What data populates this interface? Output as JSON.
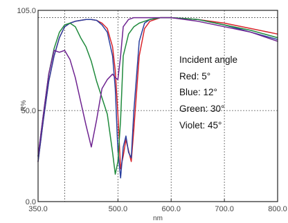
{
  "chart_data": {
    "type": "line",
    "xlabel": "nm",
    "ylabel": "R%",
    "xlim": [
      350,
      800
    ],
    "ylim": [
      0,
      105
    ],
    "x_ticks": [
      350,
      500,
      600,
      700,
      800
    ],
    "x_tick_labels": [
      "350.0",
      "500.0",
      "600.0",
      "700.0",
      "800.0"
    ],
    "x_gridlines": [
      400,
      500,
      600,
      700
    ],
    "y_ticks": [
      0,
      50,
      105
    ],
    "y_tick_labels": [
      "0.0",
      "50.0",
      "105.0"
    ],
    "y_gridlines": [
      50,
      101
    ],
    "grid": true,
    "annotation": [
      "Incident angle",
      "Red: 5°",
      "Blue: 12°",
      "Green: 30°",
      "Violet: 45°"
    ],
    "series": [
      {
        "color": "#d8232a",
        "x": [
          350,
          360,
          370,
          380,
          390,
          400,
          410,
          420,
          430,
          440,
          450,
          460,
          470,
          480,
          490,
          495,
          500,
          505,
          510,
          515,
          520,
          525,
          530,
          540,
          550,
          560,
          580,
          600,
          650,
          700,
          750,
          800
        ],
        "y": [
          22,
          45,
          66,
          80,
          90,
          96,
          98,
          99,
          99.5,
          100,
          100,
          99.5,
          98,
          95,
          85,
          72,
          48,
          18,
          25,
          34,
          28,
          22,
          40,
          80,
          95,
          99,
          101,
          101,
          100,
          98,
          95,
          92
        ]
      },
      {
        "color": "#2a3f9e",
        "x": [
          350,
          360,
          370,
          380,
          390,
          400,
          410,
          420,
          430,
          440,
          450,
          460,
          470,
          480,
          490,
          495,
          500,
          505,
          510,
          515,
          520,
          525,
          530,
          540,
          550,
          560,
          580,
          600,
          650,
          700,
          750,
          800
        ],
        "y": [
          22,
          45,
          66,
          80,
          90,
          96,
          98,
          99,
          99.5,
          100,
          100,
          99.5,
          97,
          93,
          80,
          62,
          28,
          13,
          30,
          36,
          27,
          24,
          50,
          88,
          98,
          100,
          101,
          101,
          100,
          97,
          93,
          89
        ]
      },
      {
        "color": "#1f8a3c",
        "x": [
          350,
          360,
          370,
          380,
          390,
          400,
          410,
          420,
          430,
          440,
          450,
          460,
          470,
          480,
          490,
          495,
          500,
          505,
          510,
          520,
          530,
          540,
          550,
          560,
          570,
          580,
          590,
          600,
          650,
          700,
          750,
          800
        ],
        "y": [
          25,
          48,
          70,
          84,
          93,
          97,
          98,
          96,
          90,
          85,
          77,
          66,
          57,
          48,
          27,
          15,
          22,
          45,
          80,
          92,
          96,
          98,
          99,
          100,
          100.5,
          101,
          101,
          101,
          100,
          97,
          94,
          90
        ]
      },
      {
        "color": "#6e2390",
        "x": [
          350,
          360,
          370,
          380,
          390,
          400,
          410,
          420,
          430,
          440,
          450,
          460,
          470,
          480,
          490,
          495,
          500,
          505,
          510,
          520,
          530,
          540,
          550,
          560,
          570,
          580,
          590,
          600,
          650,
          700,
          750,
          800
        ],
        "y": [
          25,
          48,
          70,
          83,
          82,
          83,
          78,
          68,
          55,
          42,
          30,
          45,
          62,
          67,
          70,
          68,
          67,
          80,
          96,
          100,
          101,
          101,
          101,
          101,
          101,
          101,
          101,
          101,
          99,
          96,
          93,
          88
        ]
      }
    ]
  }
}
